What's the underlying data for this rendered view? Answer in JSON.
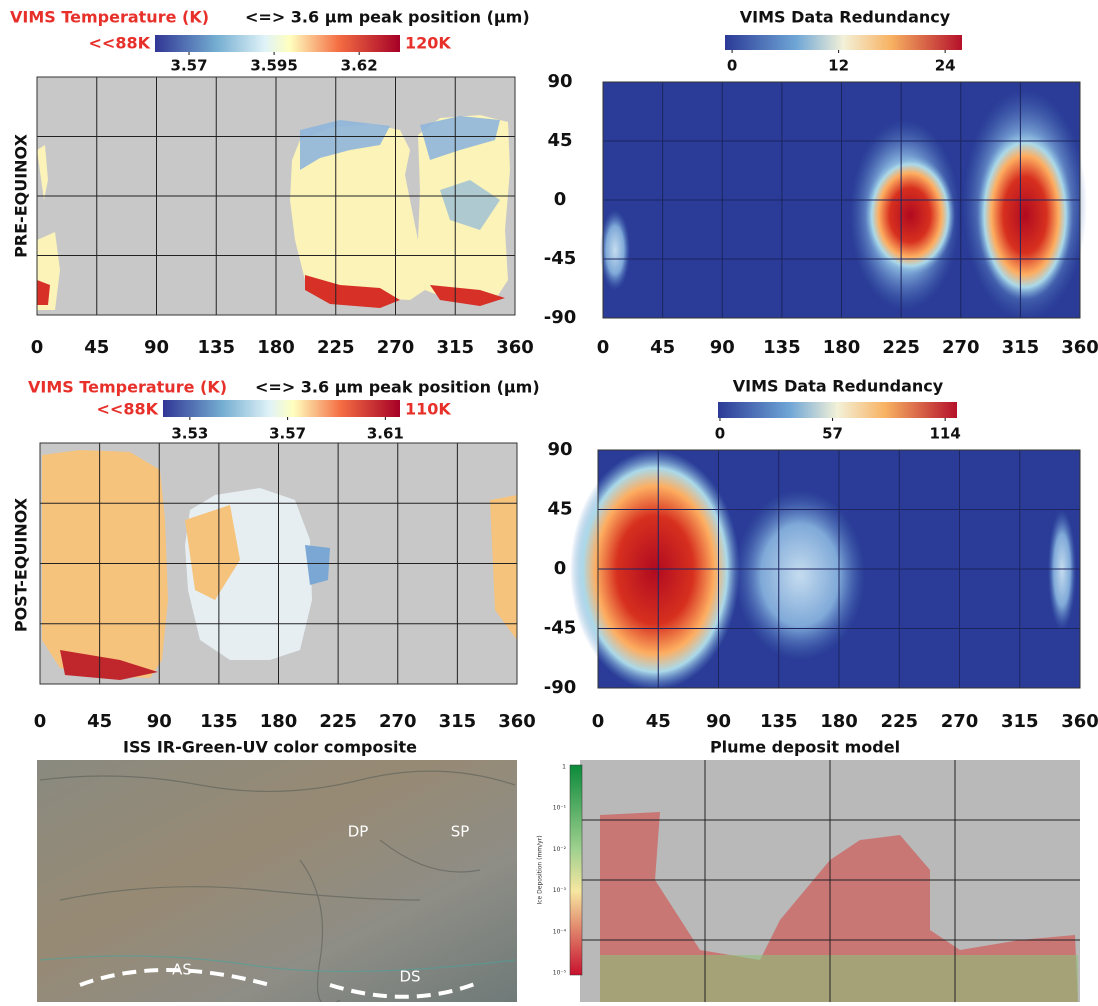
{
  "panels": [
    {
      "title_parts": [
        "VIMS Temperature (K)",
        "<=> 3.6 µm peak position (µm)"
      ],
      "cbar_min_label": "<<88K",
      "cbar_max_label": "120K",
      "cbar_lim": [
        3.56,
        3.632
      ],
      "cbar_ticks": [
        3.57,
        3.595,
        3.62
      ],
      "side_label": "PRE-EQUINOX",
      "xlim": [
        0,
        360
      ],
      "ylim": [
        -90,
        90
      ],
      "xticks": [
        0,
        45,
        90,
        135,
        180,
        225,
        270,
        315,
        360
      ],
      "yticks": [
        -90,
        -45,
        0,
        45,
        90
      ],
      "ytick_labels": false
    },
    {
      "title": "VIMS Data Redundancy",
      "cbar_lim": [
        -0.8,
        25.9
      ],
      "cbar_ticks": [
        0,
        12,
        24
      ],
      "xlim": [
        0,
        360
      ],
      "ylim": [
        -90,
        90
      ],
      "xticks": [
        0,
        45,
        90,
        135,
        180,
        225,
        270,
        315,
        360
      ],
      "yticks": [
        -90,
        -45,
        0,
        45,
        90
      ],
      "ytick_labels": true
    },
    {
      "title_parts": [
        "VIMS Temperature (K)",
        "<=> 3.6 µm peak position (µm)"
      ],
      "cbar_min_label": "<<88K",
      "cbar_max_label": "110K",
      "cbar_lim": [
        3.519,
        3.616
      ],
      "cbar_ticks": [
        3.53,
        3.57,
        3.61
      ],
      "side_label": "POST-EQUINOX",
      "xlim": [
        0,
        360
      ],
      "ylim": [
        -90,
        90
      ],
      "xticks": [
        0,
        45,
        90,
        135,
        180,
        225,
        270,
        315,
        360
      ],
      "yticks": [
        -90,
        -45,
        0,
        45,
        90
      ],
      "ytick_labels": false
    },
    {
      "title": "VIMS Data Redundancy",
      "cbar_lim": [
        -1,
        120
      ],
      "cbar_ticks": [
        0,
        57,
        114
      ],
      "xlim": [
        0,
        360
      ],
      "ylim": [
        -90,
        90
      ],
      "xticks": [
        0,
        45,
        90,
        135,
        180,
        225,
        270,
        315,
        360
      ],
      "yticks": [
        -90,
        -45,
        0,
        45,
        90
      ],
      "ytick_labels": true
    },
    {
      "title": "ISS IR-Green-UV color composite",
      "labels": [
        "DP",
        "SP",
        "AS",
        "DS"
      ]
    },
    {
      "title": "Plume deposit model",
      "cbar_labels": [
        "1",
        "10⁻¹",
        "10⁻²",
        "10⁻³",
        "10⁻⁴",
        "10⁻⁵"
      ],
      "cbar_title": "Ice Deposition (mm/yr)"
    }
  ]
}
